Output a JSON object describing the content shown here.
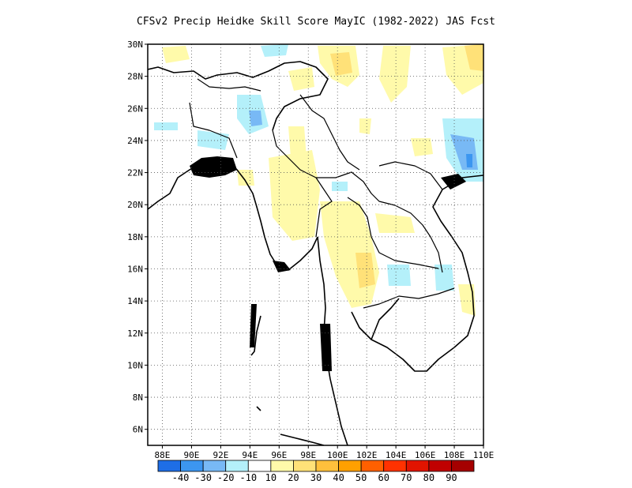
{
  "title": "CFSv2 Precip Heidke Skill Score MayIC (1982-2022) JAS Fcst",
  "map": {
    "lon_range": [
      87,
      110
    ],
    "lat_range": [
      5,
      30
    ],
    "lat_ticks": [
      {
        "lat": 30,
        "label": "30N"
      },
      {
        "lat": 28,
        "label": "28N"
      },
      {
        "lat": 26,
        "label": "26N"
      },
      {
        "lat": 24,
        "label": "24N"
      },
      {
        "lat": 22,
        "label": "22N"
      },
      {
        "lat": 20,
        "label": "20N"
      },
      {
        "lat": 18,
        "label": "18N"
      },
      {
        "lat": 16,
        "label": "16N"
      },
      {
        "lat": 14,
        "label": "14N"
      },
      {
        "lat": 12,
        "label": "12N"
      },
      {
        "lat": 10,
        "label": "10N"
      },
      {
        "lat": 8,
        "label": "8N"
      },
      {
        "lat": 6,
        "label": "6N"
      }
    ],
    "lon_ticks": [
      {
        "lon": 88,
        "label": "88E"
      },
      {
        "lon": 90,
        "label": "90E"
      },
      {
        "lon": 92,
        "label": "92E"
      },
      {
        "lon": 94,
        "label": "94E"
      },
      {
        "lon": 96,
        "label": "96E"
      },
      {
        "lon": 98,
        "label": "98E"
      },
      {
        "lon": 100,
        "label": "100E"
      },
      {
        "lon": 102,
        "label": "102E"
      },
      {
        "lon": 104,
        "label": "104E"
      },
      {
        "lon": 106,
        "label": "106E"
      },
      {
        "lon": 108,
        "label": "108E"
      },
      {
        "lon": 110,
        "label": "110E"
      }
    ],
    "grid": true
  },
  "colorbar": {
    "colors": [
      "#1e6ee6",
      "#3c96f0",
      "#78b9f5",
      "#b4f0fa",
      "#ffffff",
      "#fffaaa",
      "#ffe178",
      "#ffc03c",
      "#ffa000",
      "#ff6000",
      "#ff3200",
      "#e11400",
      "#c00000",
      "#a50000"
    ],
    "labels": [
      "-40",
      "-30",
      "-20",
      "-10",
      "10",
      "20",
      "30",
      "40",
      "50",
      "60",
      "70",
      "80",
      "90"
    ]
  }
}
